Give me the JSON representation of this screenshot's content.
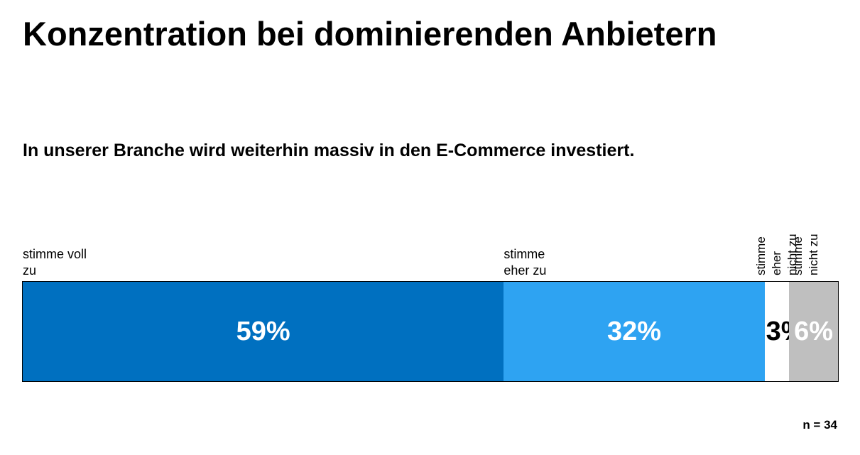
{
  "chart_data": {
    "type": "bar",
    "orientation": "horizontal-stacked",
    "title": "Konzentration bei dominierenden Anbietern",
    "subtitle": "In unserer Branche wird weiterhin massiv in den E-Commerce investiert.",
    "categories": [
      "stimme voll zu",
      "stimme eher zu",
      "stimme eher nicht zu",
      "stimme nicht zu"
    ],
    "series": [
      {
        "label": "stimme voll zu",
        "value": 59,
        "display": "59%",
        "color": "#0070c0",
        "text_color": "#ffffff"
      },
      {
        "label": "stimme eher zu",
        "value": 32,
        "display": "32%",
        "color": "#2ea3f2",
        "text_color": "#ffffff"
      },
      {
        "label": "stimme eher nicht zu",
        "value": 3,
        "display": "3%",
        "color": "#ffffff",
        "text_color": "#000000"
      },
      {
        "label": "stimme nicht zu",
        "value": 6,
        "display": "6%",
        "color": "#bfbfbf",
        "text_color": "#ffffff"
      }
    ],
    "xlim": [
      0,
      100
    ],
    "note": "n = 34"
  }
}
